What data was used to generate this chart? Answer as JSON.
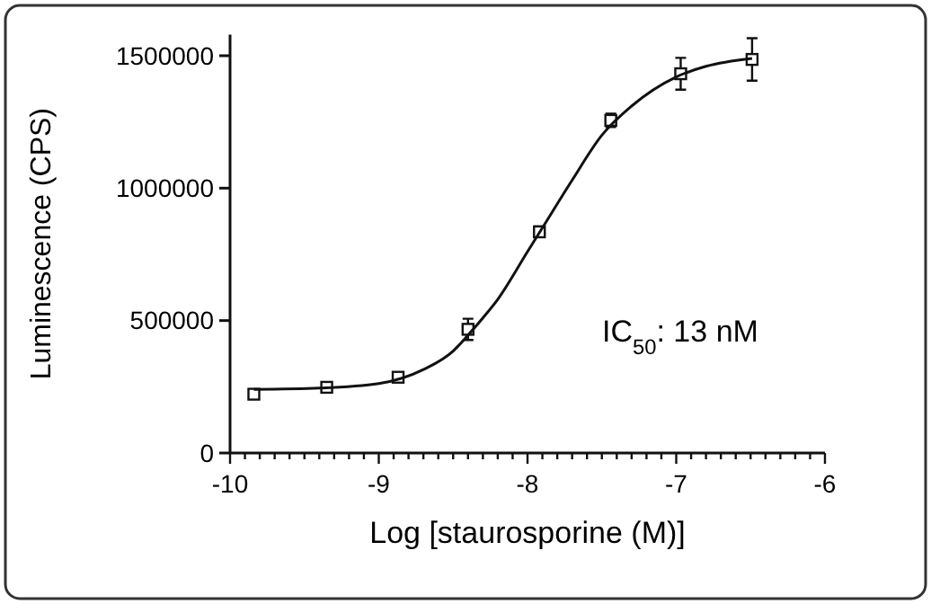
{
  "chart_data": {
    "type": "scatter",
    "xlabel": "Log [staurosporine (M)]",
    "ylabel": "Luminescence (CPS)",
    "xlim": [
      -10,
      -6
    ],
    "ylim": [
      0,
      1580000
    ],
    "xticks": [
      -10,
      {
        "value": -9.9,
        "label": null
      },
      {
        "value": -9.8,
        "label": null
      },
      {
        "value": -9.7,
        "label": null
      },
      {
        "value": -9.6,
        "label": null
      },
      {
        "value": -9.5,
        "label": null
      },
      {
        "value": -9.4,
        "label": null
      },
      {
        "value": -9.3,
        "label": null
      },
      {
        "value": -9.2,
        "label": null
      },
      {
        "value": -9.1,
        "label": null
      },
      -9,
      {
        "value": -8.9,
        "label": null
      },
      {
        "value": -8.8,
        "label": null
      },
      {
        "value": -8.7,
        "label": null
      },
      {
        "value": -8.6,
        "label": null
      },
      {
        "value": -8.5,
        "label": null
      },
      {
        "value": -8.4,
        "label": null
      },
      {
        "value": -8.3,
        "label": null
      },
      {
        "value": -8.2,
        "label": null
      },
      {
        "value": -8.1,
        "label": null
      },
      -8,
      {
        "value": -7.9,
        "label": null
      },
      {
        "value": -7.8,
        "label": null
      },
      {
        "value": -7.7,
        "label": null
      },
      {
        "value": -7.6,
        "label": null
      },
      {
        "value": -7.5,
        "label": null
      },
      {
        "value": -7.4,
        "label": null
      },
      {
        "value": -7.3,
        "label": null
      },
      {
        "value": -7.2,
        "label": null
      },
      {
        "value": -7.1,
        "label": null
      },
      -7,
      {
        "value": -6.9,
        "label": null
      },
      {
        "value": -6.8,
        "label": null
      },
      {
        "value": -6.7,
        "label": null
      },
      {
        "value": -6.6,
        "label": null
      },
      {
        "value": -6.5,
        "label": null
      },
      {
        "value": -6.4,
        "label": null
      },
      {
        "value": -6.3,
        "label": null
      },
      {
        "value": -6.2,
        "label": null
      },
      {
        "value": -6.1,
        "label": null
      },
      -6
    ],
    "yticks": [
      0,
      500000,
      1000000,
      1500000
    ],
    "grid": false,
    "annotations": [
      "IC$_{50}$: 13 nM"
    ],
    "series": [
      {
        "color": "#111111",
        "marker": "square",
        "x": [
          -9.84,
          -9.35,
          -8.87,
          -8.4,
          -7.92,
          -7.44,
          -6.97,
          -6.49
        ],
        "values": [
          222000,
          248000,
          286000,
          467000,
          835000,
          1256000,
          1432000,
          1486000
        ],
        "errors": [
          null,
          null,
          null,
          40000,
          20000,
          25000,
          60000,
          80000
        ]
      },
      {
        "type": "line",
        "color": "#111111",
        "marker": "none",
        "line_style": "solid",
        "x": [
          -9.84,
          -9.4,
          -9.0,
          -8.7,
          -8.5,
          -8.4,
          -8.3,
          -8.2,
          -8.0,
          -7.9,
          -7.7,
          -7.5,
          -7.3,
          -7.0,
          -6.8,
          -6.49
        ],
        "values": [
          240000,
          245000,
          262000,
          315000,
          385000,
          445000,
          510000,
          580000,
          760000,
          850000,
          1030000,
          1200000,
          1310000,
          1420000,
          1460000,
          1490000
        ]
      }
    ]
  }
}
